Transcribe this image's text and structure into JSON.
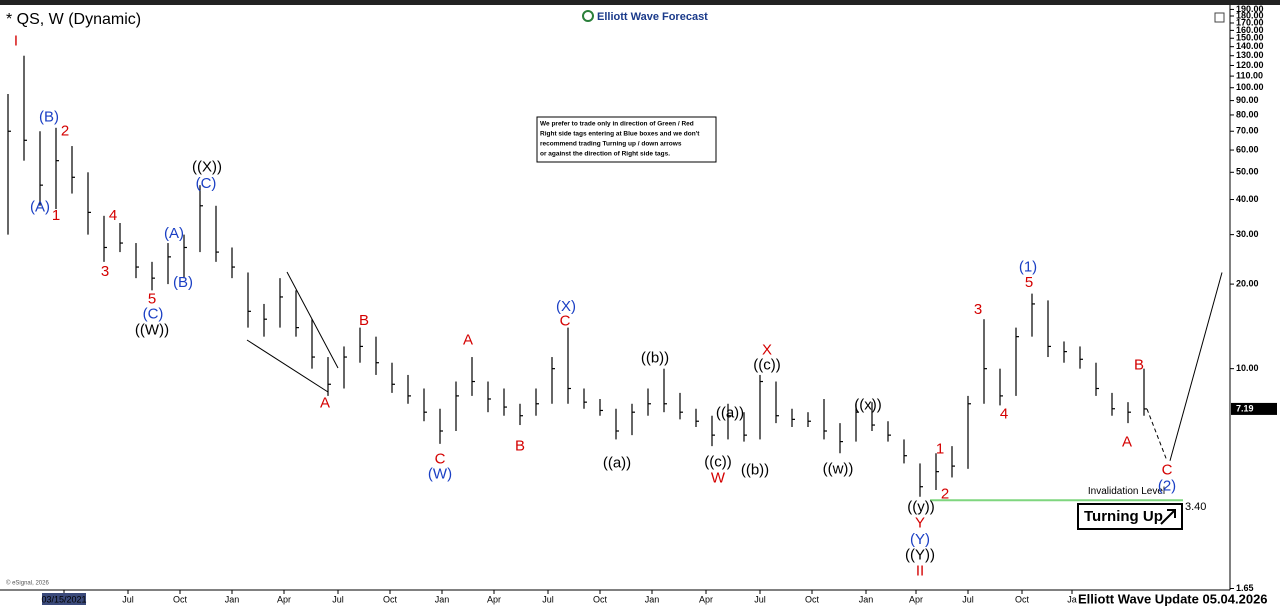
{
  "chart_data": {
    "type": "ohlc",
    "title": "* QS, W (Dynamic)",
    "brand": "Elliott Wave Forecast",
    "note": [
      "We prefer to trade only in direction of Green / Red",
      "Right side tags entering at Blue boxes and we don't",
      "recommend trading Turning up / down arrows",
      "or against the direction of Right side tags."
    ],
    "footer": "Elliott Wave Update 05.04.2026",
    "copyright": "© eSignal, 2026",
    "signal": "Turning Up",
    "log_scale": true,
    "color": "#000000",
    "xlim": [
      0,
      307
    ],
    "ylim": [
      1.63,
      197
    ],
    "xticks": [
      {
        "value": 16,
        "label": "03/15/2021"
      },
      {
        "value": 32,
        "label": "Jul"
      },
      {
        "value": 45,
        "label": "Oct"
      },
      {
        "value": 58,
        "label": "Jan"
      },
      {
        "value": 71,
        "label": "Apr"
      },
      {
        "value": 84.5,
        "label": "Jul"
      },
      {
        "value": 97.5,
        "label": "Oct"
      },
      {
        "value": 110.5,
        "label": "Jan"
      },
      {
        "value": 123.5,
        "label": "Apr"
      },
      {
        "value": 137,
        "label": "Jul"
      },
      {
        "value": 150,
        "label": "Oct"
      },
      {
        "value": 163,
        "label": "Jan"
      },
      {
        "value": 176.5,
        "label": "Apr"
      },
      {
        "value": 190,
        "label": "Jul"
      },
      {
        "value": 203,
        "label": "Oct"
      },
      {
        "value": 216.5,
        "label": "Jan"
      },
      {
        "value": 229,
        "label": "Apr"
      },
      {
        "value": 242,
        "label": "Jul"
      },
      {
        "value": 255.5,
        "label": "Oct"
      },
      {
        "value": 268,
        "label": "Ja"
      }
    ],
    "yticks": [
      {
        "value": 190,
        "label": "190.00"
      },
      {
        "value": 180,
        "label": "180.00"
      },
      {
        "value": 170,
        "label": "170.00"
      },
      {
        "value": 160,
        "label": "160.00"
      },
      {
        "value": 150,
        "label": "150.00"
      },
      {
        "value": 140,
        "label": "140.00"
      },
      {
        "value": 130,
        "label": "130.00"
      },
      {
        "value": 120,
        "label": "120.00"
      },
      {
        "value": 110,
        "label": "110.00"
      },
      {
        "value": 100,
        "label": "100.00"
      },
      {
        "value": 90,
        "label": "90.00"
      },
      {
        "value": 80,
        "label": "80.00"
      },
      {
        "value": 70,
        "label": "70.00"
      },
      {
        "value": 60,
        "label": "60.00"
      },
      {
        "value": 50,
        "label": "50.00"
      },
      {
        "value": 40,
        "label": "40.00"
      },
      {
        "value": 30,
        "label": "30.00"
      },
      {
        "value": 20,
        "label": "20.00"
      },
      {
        "value": 10,
        "label": "10.00"
      },
      1.65
    ],
    "x": [
      2,
      6,
      10,
      14,
      18,
      22,
      26,
      30,
      34,
      38,
      42,
      46,
      50,
      54,
      58,
      62,
      66,
      70,
      74,
      78,
      82,
      86,
      90,
      94,
      98,
      102,
      106,
      110,
      114,
      118,
      122,
      126,
      130,
      134,
      138,
      142,
      146,
      150,
      154,
      158,
      162,
      166,
      170,
      174,
      178,
      182,
      186,
      190,
      194,
      198,
      202,
      206,
      210,
      214,
      218,
      222,
      226,
      230,
      234,
      238,
      242,
      246,
      250,
      254,
      258,
      262,
      266,
      270,
      274,
      278,
      282,
      286
    ],
    "low": [
      30,
      55,
      38,
      37,
      42,
      30,
      24,
      26,
      21,
      19,
      20,
      21,
      26,
      24,
      21,
      14,
      13,
      14,
      13,
      10,
      8,
      8.5,
      10.5,
      9.5,
      8.2,
      7.5,
      6.5,
      5.4,
      6,
      8,
      7,
      6.8,
      6.3,
      6.8,
      7.5,
      7.5,
      7.2,
      6.8,
      5.6,
      5.8,
      6.8,
      7,
      6.6,
      6.2,
      5.3,
      5.6,
      5.5,
      5.6,
      6.4,
      6.2,
      6.2,
      5.6,
      5,
      5.5,
      6,
      5.5,
      4.6,
      3.5,
      3.7,
      4.1,
      4.4,
      7.5,
      7.4,
      8,
      13,
      11,
      10.5,
      10,
      8,
      6.8,
      6.4,
      6.8
    ],
    "high": [
      95,
      130,
      70,
      72,
      62,
      50,
      35,
      33,
      28,
      24,
      28,
      30,
      45,
      38,
      27,
      22,
      17,
      21,
      19,
      15,
      11,
      12,
      14,
      13,
      10.5,
      9.5,
      8.5,
      7.2,
      9,
      11,
      9,
      8.5,
      7.5,
      8.5,
      11,
      14,
      8.5,
      7.8,
      7.2,
      7.5,
      8.5,
      10,
      8.2,
      7.2,
      6.8,
      7.5,
      7,
      9.5,
      9,
      7.2,
      7,
      7.8,
      6.4,
      7.5,
      7.6,
      6.5,
      5.6,
      4.6,
      5,
      5.3,
      8,
      15,
      10,
      14,
      18.5,
      17.5,
      12.5,
      12,
      10.5,
      8.2,
      7.6,
      10
    ],
    "close": [
      70,
      65,
      45,
      55,
      48,
      36,
      27,
      28,
      23,
      21,
      25,
      27,
      38,
      26,
      23,
      16,
      15,
      18,
      14,
      11,
      8.8,
      11,
      12,
      10.5,
      8.8,
      8,
      7,
      6,
      8,
      9,
      7.8,
      7.3,
      6.8,
      7.5,
      10,
      8.5,
      7.6,
      7.1,
      6,
      7,
      7.5,
      7.5,
      7,
      6.5,
      5.8,
      6.8,
      5.8,
      9,
      6.8,
      6.6,
      6.5,
      6,
      5.5,
      7,
      6.3,
      5.8,
      4.9,
      3.8,
      4.3,
      4.5,
      7.5,
      10,
      8,
      13,
      17,
      12,
      11.5,
      10.8,
      8.5,
      7.2,
      7,
      7.19
    ],
    "projection": {
      "x": [
        291.75,
        305.5
      ],
      "values": [
        4.7,
        22
      ]
    },
    "invalidation": {
      "label": "Invalidation Level",
      "level": {
        "value": 3.4,
        "label": "3.40"
      },
      "x": [
        232.5,
        295.75
      ]
    },
    "labels": [
      {
        "text": "I",
        "color": "#d40000",
        "x": 4,
        "y": 145.8
      },
      {
        "text": "(B)",
        "color": "#1a3fc4",
        "x": 12.25,
        "y": 78.2
      },
      {
        "text": "2",
        "color": "#d40000",
        "x": 16.25,
        "y": 69.7
      },
      {
        "text": "(A)",
        "color": "#1a3fc4",
        "x": 10,
        "y": 37.4
      },
      {
        "text": "1",
        "color": "#d40000",
        "x": 14,
        "y": 35
      },
      {
        "text": "4",
        "color": "#d40000",
        "x": 28.25,
        "y": 35
      },
      {
        "text": "3",
        "color": "#d40000",
        "x": 26.25,
        "y": 22.1
      },
      {
        "text": "5",
        "color": "#d40000",
        "x": 38,
        "y": 17.6
      },
      {
        "text": "(C)",
        "color": "#1a3fc4",
        "x": 38.25,
        "y": 15.6
      },
      {
        "text": "((W))",
        "color": "#000000",
        "x": 38,
        "y": 13.65
      },
      {
        "text": "((X))",
        "color": "#000000",
        "x": 51.75,
        "y": 51.9
      },
      {
        "text": "(C)",
        "color": "#1a3fc4",
        "x": 51.5,
        "y": 45.5
      },
      {
        "text": "(A)",
        "color": "#1a3fc4",
        "x": 43.5,
        "y": 30.2
      },
      {
        "text": "(B)",
        "color": "#1a3fc4",
        "x": 45.75,
        "y": 20.2
      },
      {
        "text": "A",
        "color": "#d40000",
        "x": 81.25,
        "y": 7.5
      },
      {
        "text": "B",
        "color": "#d40000",
        "x": 91,
        "y": 14.8
      },
      {
        "text": "A",
        "color": "#d40000",
        "x": 117,
        "y": 12.6
      },
      {
        "text": "C",
        "color": "#d40000",
        "x": 110,
        "y": 4.74
      },
      {
        "text": "(W)",
        "color": "#1a3fc4",
        "x": 110,
        "y": 4.2
      },
      {
        "text": "B",
        "color": "#d40000",
        "x": 130,
        "y": 5.28
      },
      {
        "text": "(X)",
        "color": "#1a3fc4",
        "x": 141.5,
        "y": 16.6
      },
      {
        "text": "C",
        "color": "#d40000",
        "x": 141.25,
        "y": 14.7
      },
      {
        "text": "((b))",
        "color": "#000000",
        "x": 163.75,
        "y": 10.85
      },
      {
        "text": "((a))",
        "color": "#000000",
        "x": 154.25,
        "y": 4.59
      },
      {
        "text": "((a))",
        "color": "#000000",
        "x": 182.5,
        "y": 6.92
      },
      {
        "text": "((c))",
        "color": "#000000",
        "x": 179.5,
        "y": 4.63
      },
      {
        "text": "W",
        "color": "#d40000",
        "x": 179.5,
        "y": 4.06
      },
      {
        "text": "((b))",
        "color": "#000000",
        "x": 188.75,
        "y": 4.34
      },
      {
        "text": "X",
        "color": "#d40000",
        "x": 191.75,
        "y": 11.6
      },
      {
        "text": "((c))",
        "color": "#000000",
        "x": 191.75,
        "y": 10.25
      },
      {
        "text": "((x))",
        "color": "#000000",
        "x": 217,
        "y": 7.38
      },
      {
        "text": "((w))",
        "color": "#000000",
        "x": 209.5,
        "y": 4.37
      },
      {
        "text": "1",
        "color": "#d40000",
        "x": 235,
        "y": 5.15
      },
      {
        "text": "2",
        "color": "#d40000",
        "x": 236.25,
        "y": 3.56
      },
      {
        "text": "((y))",
        "color": "#000000",
        "x": 230.25,
        "y": 3.2
      },
      {
        "text": "Y",
        "color": "#d40000",
        "x": 230,
        "y": 2.81
      },
      {
        "text": "(Y)",
        "color": "#1a3fc4",
        "x": 230,
        "y": 2.46
      },
      {
        "text": "((Y))",
        "color": "#000000",
        "x": 230,
        "y": 2.16
      },
      {
        "text": "II",
        "color": "#d40000",
        "x": 230,
        "y": 1.9
      },
      {
        "text": "3",
        "color": "#d40000",
        "x": 244.5,
        "y": 16.2
      },
      {
        "text": "4",
        "color": "#d40000",
        "x": 251,
        "y": 6.86
      },
      {
        "text": "(1)",
        "color": "#1a3fc4",
        "x": 257,
        "y": 22.9
      },
      {
        "text": "5",
        "color": "#d40000",
        "x": 257.25,
        "y": 20.2
      },
      {
        "text": "B",
        "color": "#d40000",
        "x": 284.75,
        "y": 10.25
      },
      {
        "text": "A",
        "color": "#d40000",
        "x": 281.75,
        "y": 5.45
      },
      {
        "text": "C",
        "color": "#d40000",
        "x": 291.75,
        "y": 4.34
      },
      {
        "text": "(2)",
        "color": "#1a3fc4",
        "x": 291.75,
        "y": 3.8
      }
    ]
  }
}
